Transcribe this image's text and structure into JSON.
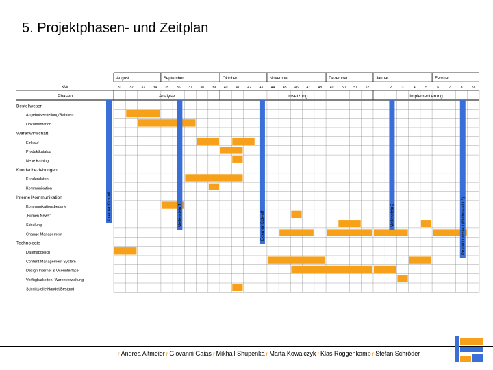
{
  "slide": {
    "title": "5. Projektphasen- und Zeitplan"
  },
  "table": {
    "months": [
      "August",
      "September",
      "Oktober",
      "November",
      "Dezember",
      "Januar",
      "Februar"
    ],
    "kw_label": "KW",
    "weeks": [
      "31",
      "32",
      "33",
      "34",
      "35",
      "36",
      "37",
      "38",
      "39",
      "40",
      "41",
      "42",
      "43",
      "44",
      "45",
      "46",
      "47",
      "48",
      "49",
      "50",
      "51",
      "52",
      "1",
      "2",
      "3",
      "4",
      "5",
      "6",
      "7",
      "8",
      "9"
    ],
    "phasen_label": "Phasen",
    "phases": [
      "Analyse",
      "Umsetzung",
      "Implementierung"
    ],
    "milestones": [
      "Interner Kick-off",
      "Meilenstein 1",
      "Externer Kick-off",
      "Meilenstein 2",
      "Produktionsstart (Meilenstein 3)"
    ],
    "sections": [
      {
        "title": "Bestellwesen",
        "rows": [
          "Angebotserstellung/Rahmen",
          "Dokumentation"
        ]
      },
      {
        "title": "Warenwirtschaft",
        "rows": [
          "Einkauf",
          "Produktkatalog",
          "Neue Katalog"
        ]
      },
      {
        "title": "Kundenbeziehungen",
        "rows": [
          "Kundendaten",
          "Kommunikation"
        ]
      },
      {
        "title": "Interne Kommunikation",
        "rows": [
          "Kommunikationsbedarfe",
          "„Firmen News“",
          "Schulung",
          "Change Management"
        ]
      },
      {
        "title": "Technologie",
        "rows": [
          "Datenabgleich",
          "Content Management System",
          "Design Internet & Userinterface",
          "Verfügbarkeiten, Warenverwaltung",
          "Schnittstelle Handel/Bestand"
        ]
      }
    ]
  },
  "bars": [
    {
      "row": "Angebotserstellung/Rahmen",
      "from": "32",
      "to": "34"
    },
    {
      "row": "Dokumentation",
      "from": "33",
      "to": "37"
    },
    {
      "row": "Einkauf",
      "from": "38",
      "to": "39"
    },
    {
      "row": "Einkauf",
      "from": "41",
      "to": "42"
    },
    {
      "row": "Produktkatalog",
      "from": "40",
      "to": "41"
    },
    {
      "row": "Neue Katalog",
      "from": "41",
      "to": "41"
    },
    {
      "row": "Kundendaten",
      "from": "37",
      "to": "41"
    },
    {
      "row": "Kommunikation",
      "from": "39",
      "to": "39"
    },
    {
      "row": "Kommunikationsbedarfe",
      "from": "35",
      "to": "36"
    },
    {
      "row": "„Firmen News“",
      "from": "46",
      "to": "46"
    },
    {
      "row": "Schulung",
      "from": "50",
      "to": "51"
    },
    {
      "row": "Schulung",
      "from": "5",
      "to": "5"
    },
    {
      "row": "Change Management",
      "from": "45",
      "to": "47"
    },
    {
      "row": "Change Management",
      "from": "49",
      "to": "52"
    },
    {
      "row": "Change Management",
      "from": "1",
      "to": "3"
    },
    {
      "row": "Change Management",
      "from": "6",
      "to": "8"
    },
    {
      "row": "Datenabgleich",
      "from": "31",
      "to": "32"
    },
    {
      "row": "Content Management System",
      "from": "44",
      "to": "48"
    },
    {
      "row": "Content Management System",
      "from": "4",
      "to": "5"
    },
    {
      "row": "Design Internet & Userinterface",
      "from": "46",
      "to": "52"
    },
    {
      "row": "Design Internet & Userinterface",
      "from": "1",
      "to": "2"
    },
    {
      "row": "Verfügbarkeiten, Warenverwaltung",
      "from": "3",
      "to": "3"
    },
    {
      "row": "Schnittstelle Handel/Bestand",
      "from": "41",
      "to": "41"
    }
  ],
  "footer": {
    "separator": "r",
    "names": [
      "Andrea Altmeier",
      "Giovanni Gaias",
      "Mikhail Shupenka",
      "Marta Kowalczyk",
      "Klas Roggenkamp",
      "Stefan Schröder"
    ]
  },
  "colors": {
    "bar": "#f7a11a",
    "milestone": "#3a6fd8",
    "grid": "#808080",
    "footer_separator": "#f39c12"
  }
}
